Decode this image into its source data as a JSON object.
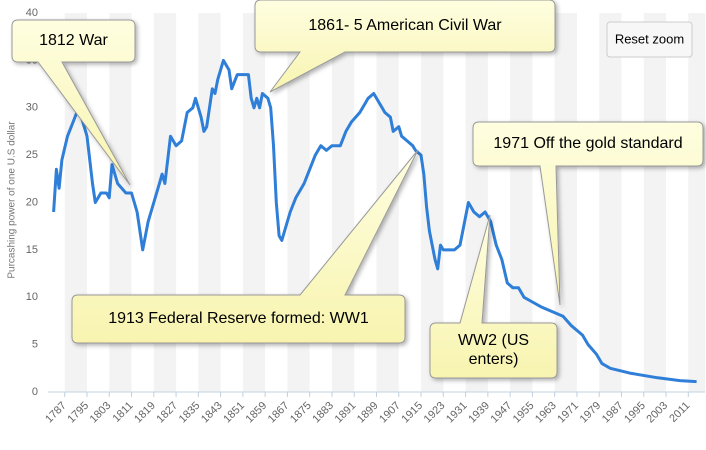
{
  "chart_data": {
    "type": "line",
    "y_label": "Purcashing power of one U.S dollar",
    "x": [
      1783,
      1784,
      1785,
      1786,
      1788,
      1790,
      1792,
      1795,
      1797,
      1798,
      1800,
      1802,
      1803,
      1804,
      1806,
      1809,
      1811,
      1813,
      1814,
      1815,
      1817,
      1819,
      1821,
      1822,
      1823,
      1825,
      1827,
      1829,
      1831,
      1833,
      1834,
      1836,
      1837,
      1838,
      1840,
      1841,
      1842,
      1843,
      1844,
      1845,
      1846,
      1847,
      1849,
      1851,
      1853,
      1854,
      1855,
      1856,
      1857,
      1858,
      1860,
      1861,
      1862,
      1863,
      1864,
      1865,
      1866,
      1868,
      1870,
      1871,
      1873,
      1875,
      1877,
      1879,
      1881,
      1883,
      1886,
      1888,
      1890,
      1893,
      1895,
      1896,
      1898,
      1900,
      1902,
      1904,
      1905,
      1907,
      1908,
      1910,
      1912,
      1913,
      1915,
      1916,
      1917,
      1918,
      1920,
      1921,
      1922,
      1923,
      1925,
      1927,
      1929,
      1930,
      1932,
      1934,
      1936,
      1938,
      1940,
      1942,
      1944,
      1946,
      1948,
      1950,
      1952,
      1955,
      1958,
      1962,
      1966,
      1969,
      1971,
      1973,
      1975,
      1978,
      1980,
      1983,
      1990,
      2000,
      2008,
      2014
    ],
    "values": [
      19,
      23.5,
      21.5,
      24.5,
      27,
      28.5,
      30,
      27,
      22,
      20,
      21,
      21,
      20.5,
      24,
      22,
      21,
      21,
      19,
      17,
      15,
      18,
      20,
      22,
      23,
      22,
      27,
      26,
      26.5,
      29.5,
      30,
      31,
      29,
      27.5,
      28,
      32,
      31.5,
      33,
      34,
      35,
      34.5,
      34,
      32,
      33.5,
      33.5,
      33.5,
      31,
      30,
      31,
      30,
      31.5,
      31,
      30,
      26,
      20,
      16.5,
      16,
      17,
      19,
      20.5,
      21,
      22,
      23.5,
      25,
      26,
      25.5,
      26,
      26,
      27.5,
      28.5,
      29.5,
      30.5,
      31,
      31.5,
      30.5,
      29.5,
      29,
      27.5,
      28,
      27,
      26.5,
      26,
      25.5,
      25,
      23,
      19.5,
      17,
      14,
      13,
      15.5,
      15,
      15,
      15,
      15.5,
      17,
      20,
      19,
      18.5,
      19,
      18,
      15.5,
      14,
      11.5,
      11,
      11,
      10,
      9.5,
      9,
      8.5,
      8,
      7,
      6.5,
      6,
      5,
      4,
      3,
      2.5,
      2,
      1.5,
      1.2,
      1.1
    ],
    "color": "#2f7ed8",
    "xlim": [
      1781,
      2017
    ],
    "xticks": [
      1787,
      1795,
      1803,
      1811,
      1819,
      1827,
      1835,
      1843,
      1851,
      1859,
      1867,
      1875,
      1883,
      1891,
      1899,
      1907,
      1915,
      1923,
      1931,
      1939,
      1947,
      1955,
      1963,
      1971,
      1979,
      1987,
      1995,
      2003,
      2011
    ],
    "ylim": [
      0,
      40
    ],
    "yticks": [
      0,
      5,
      10,
      15,
      20,
      25,
      30,
      35,
      40
    ],
    "annotations": [
      {
        "text": [
          "1812 War"
        ]
      },
      {
        "text": [
          "1861- 5 American Civil War"
        ]
      },
      {
        "text": [
          "1971 Off the gold standard"
        ]
      },
      {
        "text": [
          "1913 Federal Reserve formed: WW1"
        ]
      },
      {
        "text": [
          "WW2 (US",
          "enters)"
        ]
      }
    ]
  },
  "ui": {
    "reset_button": "Reset zoom"
  }
}
